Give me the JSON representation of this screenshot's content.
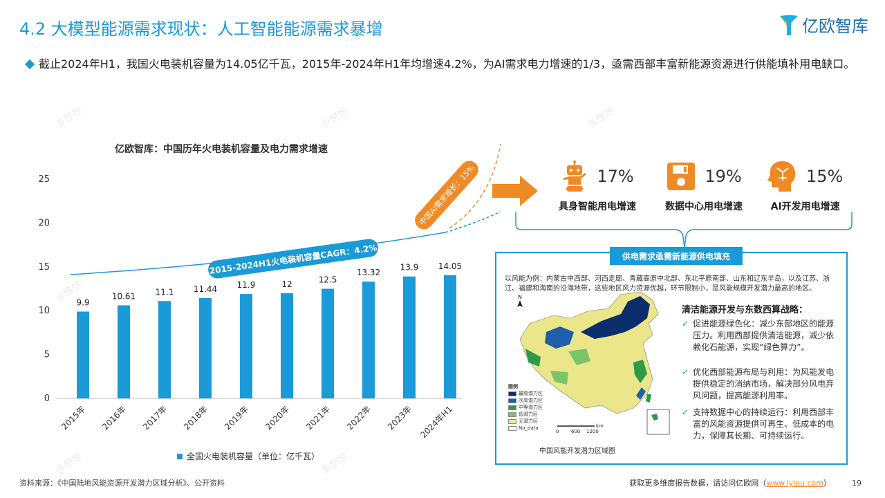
{
  "header": {
    "title": "4.2 大模型能源需求现状：人工智能能源需求暴增",
    "logo_text": "亿欧智库"
  },
  "bullet": "截止2024年H1，我国火电装机容量为14.05亿千瓦，2015年-2024年H1年均增速4.2%，为AI需求电力增速的1/3，亟需西部丰富新能源资源进行供能填补用电缺口。",
  "chart_data": {
    "type": "bar",
    "title": "亿欧智库：中国历年火电装机容量及电力需求增速",
    "categories": [
      "2015年",
      "2016年",
      "2017年",
      "2018年",
      "2019年",
      "2020年",
      "2021年",
      "2022年",
      "2023年",
      "2024年H1"
    ],
    "series": [
      {
        "name": "全国火电装机容量（单位：亿千瓦）",
        "values": [
          9.9,
          10.61,
          11.1,
          11.44,
          11.9,
          12,
          12.5,
          13.32,
          13.9,
          14.05
        ]
      }
    ],
    "ylim": [
      0,
      25
    ],
    "yticks": [
      0,
      5,
      10,
      15,
      20,
      25
    ],
    "grid": false,
    "legend": "bottom",
    "bar_color": "#1a9ad6",
    "annotations": {
      "cagr": "2015-2024H1火电装机容量CAGR：4.2%",
      "ai_growth": "中国AI需求增长：15%"
    }
  },
  "stats": [
    {
      "value": "17%",
      "label": "具身智能用电增速",
      "icon": "robot-icon"
    },
    {
      "value": "19%",
      "label": "数据中心用电增速",
      "icon": "floppy-disk-icon"
    },
    {
      "value": "15%",
      "label": "AI开发用电增速",
      "icon": "ai-head-icon"
    }
  ],
  "box": {
    "banner": "供电需求亟需新能源供电填充",
    "intro": "以风能为例：内蒙古中西部、河西走廊、青藏高原中北部、东北平原南部、山东和辽东半岛，以及江苏、浙江、福建和海南的沿海地带，这些地区风力资源优越，环节限制小，是风能规模开发潜力最高的地区。",
    "strategy_title": "清洁能源开发与东数西算战略：",
    "items": [
      "促进能源绿色化：减少东部地区的能源压力。利用西部提供清洁能源，减少依赖化石能源，实现“绿色算力”。",
      "优化西部能源布局与利用：为风能发电提供稳定的消纳市场，解决部分风电弃风问题，提高能源利用率。",
      "支持数据中心的持续运行：利用西部丰富的风能资源提供可再生、低成本的电力，保障其长期、可持续运行。"
    ],
    "map_caption": "中国风能开发潜力区域图",
    "map_legend_title": "图例",
    "map_legend": [
      {
        "label": "最高潜力区",
        "color": "#0c2d6b"
      },
      {
        "label": "次高潜力区",
        "color": "#1f5ea8"
      },
      {
        "label": "中等潜力区",
        "color": "#2e9a48"
      },
      {
        "label": "低潜力区",
        "color": "#7cc46a"
      },
      {
        "label": "无潜力区",
        "color": "#ece68a"
      },
      {
        "label": "No_data",
        "color": "#ffffff"
      }
    ],
    "scale_ticks": [
      "0",
      "600",
      "1200"
    ],
    "scale_unit": "km",
    "north": "N"
  },
  "watermark": "多想想",
  "footer": {
    "source": "资料来源：《中国陆地风能资源开发潜力区域分析》、公开资料",
    "visit_prefix": "获取更多维度报告数据，请访问亿欧网（",
    "visit_link": "www.iyiou.com",
    "visit_suffix": "）",
    "page": "19"
  }
}
